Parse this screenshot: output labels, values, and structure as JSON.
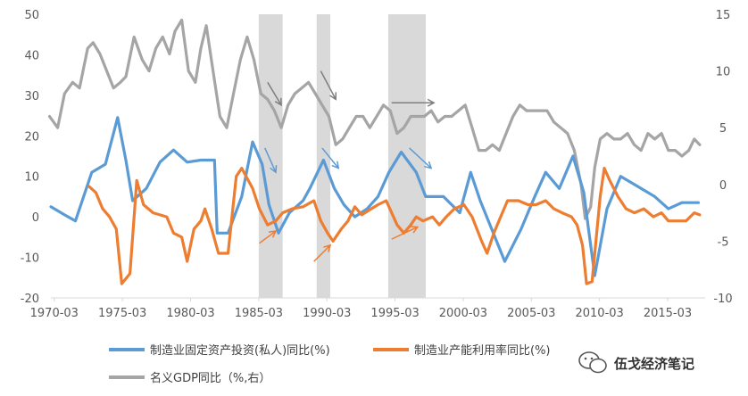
{
  "chart_data": {
    "type": "line",
    "title": "",
    "xlabel": "",
    "ylabel": "",
    "x_tick_labels": [
      "1970-03",
      "1975-03",
      "1980-03",
      "1985-03",
      "1990-03",
      "1995-03",
      "2000-03",
      "2005-03",
      "2010-03",
      "2015-03"
    ],
    "y_left": {
      "ylim": [
        -20,
        50
      ],
      "ticks": [
        "50",
        "40",
        "30",
        "20",
        "10",
        "0",
        "-10",
        "-20"
      ]
    },
    "y_right": {
      "ylim": [
        -10,
        15
      ],
      "ticks": [
        "15",
        "10",
        "5",
        "0",
        "-5",
        "-10"
      ]
    },
    "grid": false,
    "legend_position": "bottom",
    "shaded_periods": [
      [
        1985.25,
        1987.0
      ],
      [
        1989.5,
        1990.5
      ],
      [
        1994.75,
        1997.5
      ]
    ],
    "series": [
      {
        "name": "制造业固定资产投资(私人)同比(%)",
        "axis": "left",
        "color": "#5b9bd5",
        "points": [
          [
            1970.0,
            2.5
          ],
          [
            1971.0,
            0.5
          ],
          [
            1971.8,
            -1
          ],
          [
            1973.0,
            11
          ],
          [
            1974.0,
            13
          ],
          [
            1974.9,
            24.5
          ],
          [
            1975.5,
            14
          ],
          [
            1976.0,
            4
          ],
          [
            1977.0,
            7
          ],
          [
            1978.0,
            13.5
          ],
          [
            1979.0,
            16.5
          ],
          [
            1980.0,
            13.5
          ],
          [
            1981.0,
            14
          ],
          [
            1982.0,
            14
          ],
          [
            1982.2,
            -4
          ],
          [
            1983.0,
            -4
          ],
          [
            1984.0,
            5
          ],
          [
            1984.8,
            18.5
          ],
          [
            1985.5,
            13
          ],
          [
            1986.0,
            3
          ],
          [
            1986.7,
            -4
          ],
          [
            1987.5,
            1
          ],
          [
            1988.5,
            4
          ],
          [
            1989.0,
            7
          ],
          [
            1990.0,
            14
          ],
          [
            1990.8,
            7
          ],
          [
            1991.5,
            3
          ],
          [
            1992.3,
            0
          ],
          [
            1993.2,
            2
          ],
          [
            1994.0,
            5
          ],
          [
            1994.8,
            11
          ],
          [
            1995.7,
            16
          ],
          [
            1996.8,
            11
          ],
          [
            1997.5,
            5
          ],
          [
            1998.8,
            5
          ],
          [
            2000.0,
            1
          ],
          [
            2000.8,
            11
          ],
          [
            2001.5,
            4
          ],
          [
            2003.3,
            -11
          ],
          [
            2004.5,
            -3
          ],
          [
            2005.5,
            5
          ],
          [
            2006.3,
            11
          ],
          [
            2007.3,
            7
          ],
          [
            2008.3,
            15
          ],
          [
            2009.1,
            6
          ],
          [
            2009.4,
            -2
          ],
          [
            2009.9,
            -14.5
          ],
          [
            2010.8,
            2
          ],
          [
            2011.8,
            10
          ],
          [
            2012.8,
            8
          ],
          [
            2014.3,
            5
          ],
          [
            2015.3,
            2
          ],
          [
            2016.3,
            3.5
          ],
          [
            2017.5,
            3.5
          ]
        ]
      },
      {
        "name": "制造业产能利用率同比(%)",
        "axis": "left",
        "color": "#ed7d31",
        "points": [
          [
            1972.8,
            7.5
          ],
          [
            1973.3,
            6
          ],
          [
            1973.8,
            2
          ],
          [
            1974.3,
            0
          ],
          [
            1974.8,
            -3
          ],
          [
            1975.2,
            -16.5
          ],
          [
            1975.8,
            -14
          ],
          [
            1976.3,
            9
          ],
          [
            1976.8,
            3
          ],
          [
            1977.5,
            1
          ],
          [
            1978.5,
            0
          ],
          [
            1979.0,
            -4
          ],
          [
            1979.6,
            -5
          ],
          [
            1980.0,
            -11
          ],
          [
            1980.5,
            -3
          ],
          [
            1981.0,
            -1
          ],
          [
            1981.3,
            2
          ],
          [
            1981.8,
            -3
          ],
          [
            1982.3,
            -9
          ],
          [
            1983.0,
            -9
          ],
          [
            1983.6,
            10
          ],
          [
            1984.0,
            12
          ],
          [
            1984.8,
            7
          ],
          [
            1985.3,
            2
          ],
          [
            1985.9,
            -2
          ],
          [
            1986.5,
            -1
          ],
          [
            1987.0,
            1
          ],
          [
            1987.7,
            2
          ],
          [
            1988.5,
            2.5
          ],
          [
            1989.3,
            4
          ],
          [
            1989.8,
            -1
          ],
          [
            1990.3,
            -4
          ],
          [
            1990.7,
            -6
          ],
          [
            1991.3,
            -3
          ],
          [
            1991.8,
            -1
          ],
          [
            1992.3,
            2.5
          ],
          [
            1992.8,
            0.5
          ],
          [
            1993.5,
            2
          ],
          [
            1994.0,
            3
          ],
          [
            1994.6,
            4
          ],
          [
            1995.4,
            -2
          ],
          [
            1995.9,
            -4
          ],
          [
            1996.4,
            -2
          ],
          [
            1996.8,
            0
          ],
          [
            1997.3,
            -1
          ],
          [
            1998.0,
            0
          ],
          [
            1998.5,
            -2
          ],
          [
            1999.0,
            0
          ],
          [
            1999.6,
            2
          ],
          [
            2000.3,
            3
          ],
          [
            2000.9,
            0
          ],
          [
            2001.6,
            -6
          ],
          [
            2002.0,
            -9
          ],
          [
            2002.5,
            -4
          ],
          [
            2003.0,
            0
          ],
          [
            2003.5,
            4
          ],
          [
            2004.3,
            4
          ],
          [
            2005.0,
            3
          ],
          [
            2005.6,
            3
          ],
          [
            2006.3,
            4
          ],
          [
            2006.9,
            2
          ],
          [
            2007.5,
            1
          ],
          [
            2008.2,
            0
          ],
          [
            2008.6,
            -2
          ],
          [
            2009.0,
            -7
          ],
          [
            2009.3,
            -16.5
          ],
          [
            2009.7,
            -16
          ],
          [
            2010.3,
            5
          ],
          [
            2010.6,
            12
          ],
          [
            2011.0,
            9
          ],
          [
            2011.6,
            5
          ],
          [
            2012.2,
            2
          ],
          [
            2012.8,
            1
          ],
          [
            2013.5,
            2
          ],
          [
            2014.2,
            0
          ],
          [
            2014.8,
            1
          ],
          [
            2015.3,
            -1
          ],
          [
            2016.0,
            -1
          ],
          [
            2016.6,
            -1
          ],
          [
            2017.2,
            1
          ],
          [
            2017.6,
            0.5
          ]
        ]
      },
      {
        "name": "名义GDP同比（%,右）",
        "axis": "right",
        "color": "#a5a5a5",
        "points": [
          [
            1969.9,
            6
          ],
          [
            1970.5,
            5
          ],
          [
            1971.0,
            8
          ],
          [
            1971.6,
            9
          ],
          [
            1972.1,
            8.5
          ],
          [
            1972.7,
            12
          ],
          [
            1973.1,
            12.5
          ],
          [
            1973.6,
            11.5
          ],
          [
            1974.1,
            10
          ],
          [
            1974.6,
            8.5
          ],
          [
            1975.1,
            9
          ],
          [
            1975.5,
            9.5
          ],
          [
            1976.1,
            13
          ],
          [
            1976.7,
            11
          ],
          [
            1977.2,
            10
          ],
          [
            1977.7,
            12
          ],
          [
            1978.2,
            13
          ],
          [
            1978.7,
            11.5
          ],
          [
            1979.1,
            13.5
          ],
          [
            1979.6,
            14.5
          ],
          [
            1980.1,
            10
          ],
          [
            1980.6,
            9
          ],
          [
            1981.0,
            12
          ],
          [
            1981.4,
            14
          ],
          [
            1981.9,
            10
          ],
          [
            1982.4,
            6
          ],
          [
            1982.9,
            5
          ],
          [
            1983.4,
            8
          ],
          [
            1983.9,
            11
          ],
          [
            1984.4,
            13
          ],
          [
            1984.9,
            11
          ],
          [
            1985.4,
            8
          ],
          [
            1985.9,
            7.5
          ],
          [
            1986.4,
            6.5
          ],
          [
            1986.9,
            5
          ],
          [
            1987.4,
            7
          ],
          [
            1987.9,
            8
          ],
          [
            1988.4,
            8.5
          ],
          [
            1988.9,
            9
          ],
          [
            1989.4,
            8
          ],
          [
            1989.9,
            7
          ],
          [
            1990.4,
            6
          ],
          [
            1990.9,
            3.5
          ],
          [
            1991.4,
            4
          ],
          [
            1991.9,
            5
          ],
          [
            1992.4,
            6
          ],
          [
            1992.9,
            6
          ],
          [
            1993.4,
            5
          ],
          [
            1993.9,
            6
          ],
          [
            1994.4,
            7
          ],
          [
            1994.9,
            6.5
          ],
          [
            1995.4,
            4.5
          ],
          [
            1995.9,
            5
          ],
          [
            1996.4,
            6
          ],
          [
            1996.9,
            6
          ],
          [
            1997.4,
            6
          ],
          [
            1997.9,
            6.5
          ],
          [
            1998.4,
            5.5
          ],
          [
            1998.9,
            6
          ],
          [
            1999.4,
            6
          ],
          [
            1999.9,
            6.5
          ],
          [
            2000.4,
            7
          ],
          [
            2000.9,
            5
          ],
          [
            2001.4,
            3
          ],
          [
            2001.9,
            3
          ],
          [
            2002.4,
            3.5
          ],
          [
            2002.9,
            3
          ],
          [
            2003.4,
            4.5
          ],
          [
            2003.9,
            6
          ],
          [
            2004.4,
            7
          ],
          [
            2004.9,
            6.5
          ],
          [
            2005.4,
            6.5
          ],
          [
            2005.9,
            6.5
          ],
          [
            2006.4,
            6.5
          ],
          [
            2006.9,
            5.5
          ],
          [
            2007.4,
            5
          ],
          [
            2007.9,
            4.5
          ],
          [
            2008.4,
            3
          ],
          [
            2008.9,
            0
          ],
          [
            2009.2,
            -3
          ],
          [
            2009.6,
            -2
          ],
          [
            2009.9,
            1.5
          ],
          [
            2010.3,
            4
          ],
          [
            2010.8,
            4.5
          ],
          [
            2011.3,
            4
          ],
          [
            2011.8,
            4
          ],
          [
            2012.3,
            4.5
          ],
          [
            2012.8,
            3.5
          ],
          [
            2013.3,
            3
          ],
          [
            2013.8,
            4.5
          ],
          [
            2014.3,
            4
          ],
          [
            2014.8,
            4.5
          ],
          [
            2015.3,
            3
          ],
          [
            2015.8,
            3
          ],
          [
            2016.3,
            2.5
          ],
          [
            2016.8,
            3
          ],
          [
            2017.2,
            4
          ],
          [
            2017.6,
            3.5
          ]
        ]
      }
    ],
    "annotations": [
      {
        "type": "arrow",
        "color": "#7f7f7f",
        "from": [
          1985.9,
          9
        ],
        "to": [
          1986.9,
          7
        ],
        "axis": "right"
      },
      {
        "type": "arrow",
        "color": "#5b9bd5",
        "from": [
          1985.7,
          17
        ],
        "to": [
          1986.5,
          11
        ],
        "axis": "left"
      },
      {
        "type": "arrow",
        "color": "#ed7d31",
        "from": [
          1985.3,
          -6.5
        ],
        "to": [
          1986.5,
          -3.5
        ],
        "axis": "left"
      },
      {
        "type": "arrow",
        "color": "#7f7f7f",
        "from": [
          1989.8,
          10
        ],
        "to": [
          1990.9,
          7.5
        ],
        "axis": "right"
      },
      {
        "type": "arrow",
        "color": "#5b9bd5",
        "from": [
          1989.9,
          17
        ],
        "to": [
          1991.1,
          12
        ],
        "axis": "left"
      },
      {
        "type": "arrow",
        "color": "#ed7d31",
        "from": [
          1989.3,
          -11
        ],
        "to": [
          1990.5,
          -7
        ],
        "axis": "left"
      },
      {
        "type": "arrow",
        "color": "#7f7f7f",
        "from": [
          1995.0,
          7.2
        ],
        "to": [
          1998.1,
          7.2
        ],
        "axis": "right"
      },
      {
        "type": "arrow",
        "color": "#5b9bd5",
        "from": [
          1996.3,
          17
        ],
        "to": [
          1997.9,
          12
        ],
        "axis": "left"
      },
      {
        "type": "arrow",
        "color": "#ed7d31",
        "from": [
          1995.0,
          -5.5
        ],
        "to": [
          1996.9,
          -2.5
        ],
        "axis": "left"
      }
    ]
  },
  "watermark": {
    "text": "伍戈经济笔记",
    "icon": "chat-bubble-icon"
  }
}
